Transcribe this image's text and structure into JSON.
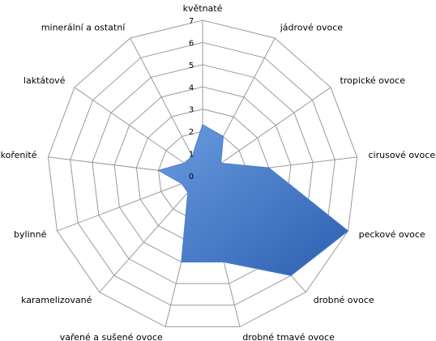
{
  "chart_data": {
    "type": "radar",
    "categories": [
      "květnaté",
      "jádrové ovoce",
      "tropické ovoce",
      "cirusové ovoce",
      "peckové ovoce",
      "drobné ovoce",
      "drobné tmavé ovoce",
      "vařené a sušené ovoce",
      "karamelizované",
      "bylinné",
      "kořenité",
      "laktátové",
      "minerální a ostatní"
    ],
    "values": [
      2.3,
      2,
      1,
      3,
      7,
      6,
      4,
      4,
      1,
      1,
      2,
      1,
      1
    ],
    "color": "#4a7fd0",
    "ylim": [
      0,
      7
    ],
    "yticks": [
      0,
      1,
      2,
      3,
      4,
      5,
      6,
      7
    ],
    "grid": true
  }
}
